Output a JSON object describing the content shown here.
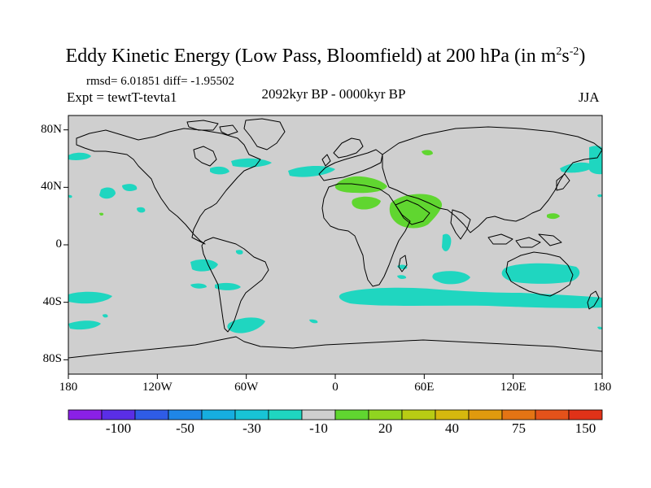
{
  "figure": {
    "title_main": "Eddy Kinetic Energy (Low Pass, Bloomfield) at 200 hPa (in m",
    "title_sup1": "2",
    "title_mid": "s",
    "title_sup2": "-2",
    "title_end": ")",
    "stats": "rmsd= 6.01851 diff= -1.95502",
    "expt": "Expt = tewtT-tevta1",
    "period": "2092kyr BP - 0000kyr BP",
    "season": "JJA"
  },
  "map": {
    "type": "filled-contour-map",
    "projection": "cylindrical-equidistant",
    "lon_range": [
      -180,
      180
    ],
    "lat_range": [
      -90,
      90
    ],
    "lat_ticks": [
      {
        "value": 80,
        "label": "80N"
      },
      {
        "value": 40,
        "label": "40N"
      },
      {
        "value": 0,
        "label": "0"
      },
      {
        "value": -40,
        "label": "40S"
      },
      {
        "value": -80,
        "label": "80S"
      }
    ],
    "lon_ticks": [
      {
        "value": -180,
        "label": "180"
      },
      {
        "value": -120,
        "label": "120W"
      },
      {
        "value": -60,
        "label": "60W"
      },
      {
        "value": 0,
        "label": "0"
      },
      {
        "value": 60,
        "label": "60E"
      },
      {
        "value": 120,
        "label": "120E"
      },
      {
        "value": 180,
        "label": "180"
      }
    ],
    "background_color": "#cfcfcf",
    "coastline_color": "#000000"
  },
  "colorbar": {
    "colors": [
      "#8a20e6",
      "#5a2ee6",
      "#2f5ce6",
      "#1f86e6",
      "#16aee0",
      "#18c4d6",
      "#1fd6c0",
      "#cfcfcf",
      "#60d630",
      "#90d420",
      "#b8cc14",
      "#d6b80e",
      "#e09a0e",
      "#e47414",
      "#e4521a",
      "#e03218"
    ],
    "labels": [
      {
        "boundary": 2,
        "text": "-100"
      },
      {
        "boundary": 4,
        "text": "-50"
      },
      {
        "boundary": 6,
        "text": "-30"
      },
      {
        "boundary": 8,
        "text": "-10"
      },
      {
        "boundary": 10,
        "text": "20"
      },
      {
        "boundary": 12,
        "text": "40"
      },
      {
        "boundary": 14,
        "text": "75"
      },
      {
        "boundary": 16,
        "text": "150"
      }
    ]
  }
}
